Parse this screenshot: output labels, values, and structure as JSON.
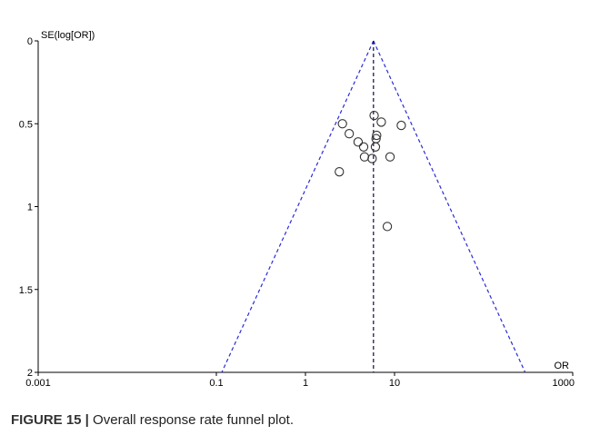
{
  "chart_data": {
    "type": "scatter",
    "title": "",
    "ylabel": "SE(log[OR])",
    "xlabel": "OR",
    "x_scale": "log",
    "xlim": [
      0.001,
      1000
    ],
    "ylim": [
      0,
      2
    ],
    "y_inverted": true,
    "x_ticks": [
      0.001,
      0.1,
      1,
      10,
      1000
    ],
    "x_tick_labels": [
      "0.001",
      "0.1",
      "1",
      "10",
      "1000"
    ],
    "y_ticks": [
      0,
      0.5,
      1,
      1.5,
      2
    ],
    "y_tick_labels": [
      "0",
      "0.5",
      "1",
      "1.5",
      "2"
    ],
    "pooled_or": 5.8,
    "grid": false,
    "points": [
      {
        "x": 5.9,
        "y": 0.45
      },
      {
        "x": 7.1,
        "y": 0.49
      },
      {
        "x": 2.6,
        "y": 0.5
      },
      {
        "x": 11.9,
        "y": 0.51
      },
      {
        "x": 3.1,
        "y": 0.56
      },
      {
        "x": 6.3,
        "y": 0.57
      },
      {
        "x": 6.2,
        "y": 0.59
      },
      {
        "x": 3.9,
        "y": 0.61
      },
      {
        "x": 4.5,
        "y": 0.64
      },
      {
        "x": 6.1,
        "y": 0.64
      },
      {
        "x": 4.6,
        "y": 0.7
      },
      {
        "x": 8.9,
        "y": 0.7
      },
      {
        "x": 5.6,
        "y": 0.71
      },
      {
        "x": 2.4,
        "y": 0.79
      },
      {
        "x": 8.3,
        "y": 1.12
      }
    ],
    "colors": {
      "funnel": "#2b2bd6",
      "pooled_line": "#0a0a40",
      "marker": "#333333",
      "axis": "#000000"
    }
  },
  "caption": {
    "label": "FIGURE 15 |",
    "text": " Overall response rate funnel plot."
  }
}
